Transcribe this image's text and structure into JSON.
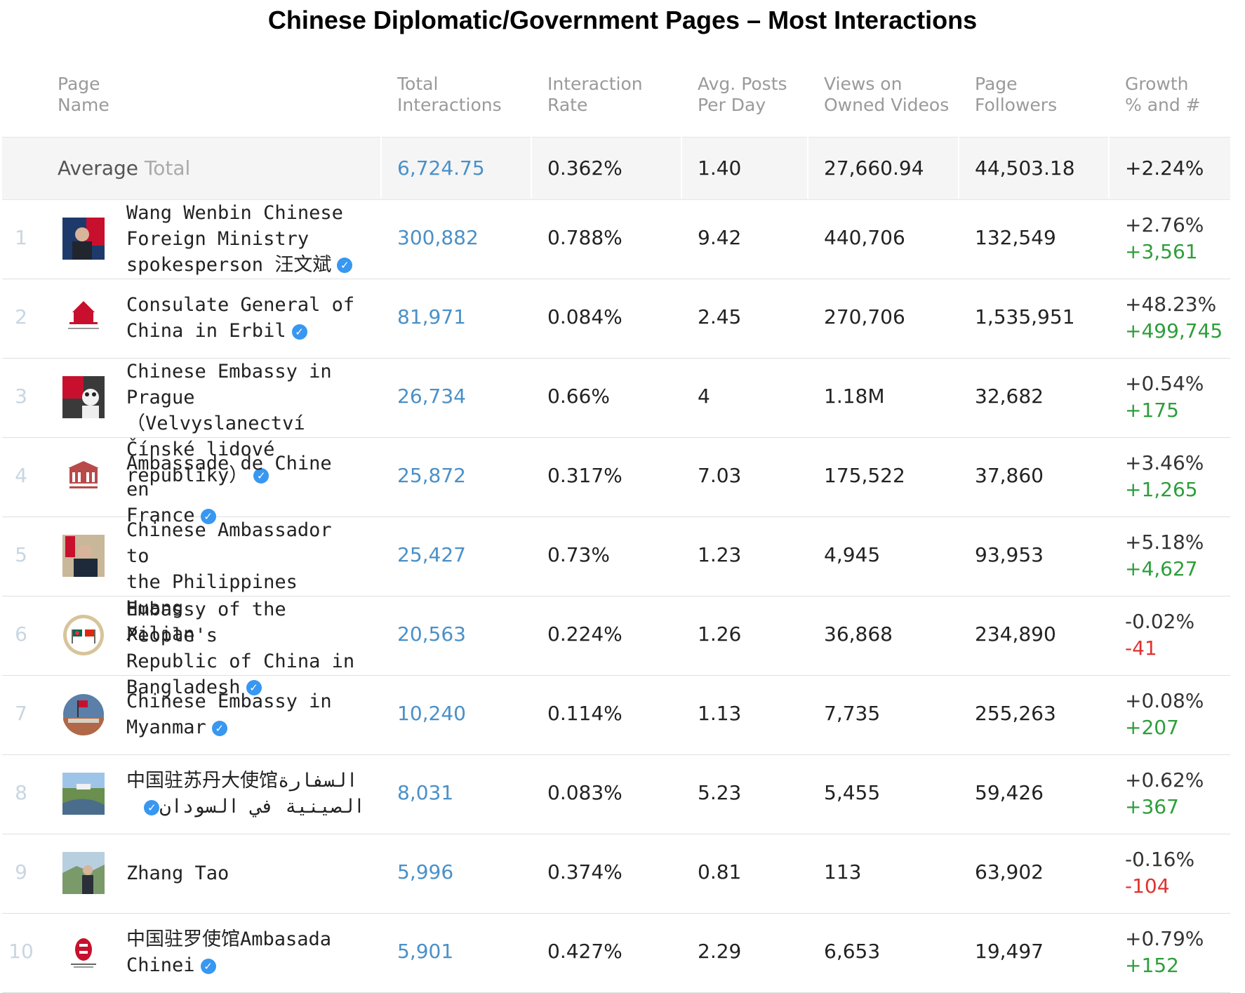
{
  "title": "Chinese Diplomatic/Government Pages – Most Interactions",
  "headers": {
    "page_name": [
      "Page",
      "Name"
    ],
    "total_interactions": [
      "Total",
      "Interactions"
    ],
    "interaction_rate": [
      "Interaction",
      "Rate"
    ],
    "avg_posts": [
      "Avg. Posts",
      "Per Day"
    ],
    "views": [
      "Views on",
      "Owned Videos"
    ],
    "followers": [
      "Page",
      "Followers"
    ],
    "growth": [
      "Growth",
      "% and #"
    ]
  },
  "average": {
    "label": "Average",
    "label2": "Total",
    "total_interactions": "6,724.75",
    "interaction_rate": "0.362%",
    "avg_posts": "1.40",
    "views": "27,660.94",
    "followers": "44,503.18",
    "growth": "+2.24%"
  },
  "rows": [
    {
      "rank": "1",
      "name_lines": [
        "Wang Wenbin Chinese",
        "Foreign Ministry",
        "spokesperson 汪文斌"
      ],
      "verified": true,
      "total": "300,882",
      "rate": "0.788%",
      "posts": "9.42",
      "views": "440,706",
      "followers": "132,549",
      "growth_pct": "+2.76%",
      "growth_num": "+3,561",
      "growth_sign": "pos"
    },
    {
      "rank": "2",
      "name_lines": [
        "Consulate General of",
        "China in Erbil"
      ],
      "verified": true,
      "total": "81,971",
      "rate": "0.084%",
      "posts": "2.45",
      "views": "270,706",
      "followers": "1,535,951",
      "growth_pct": "+48.23%",
      "growth_num": "+499,745",
      "growth_sign": "pos"
    },
    {
      "rank": "3",
      "name_lines": [
        "Chinese Embassy in",
        "Prague （Velvyslanectví",
        "Čínské lidové republiky）"
      ],
      "verified": true,
      "total": "26,734",
      "rate": "0.66%",
      "posts": "4",
      "views": "1.18M",
      "followers": "32,682",
      "growth_pct": "+0.54%",
      "growth_num": "+175",
      "growth_sign": "pos"
    },
    {
      "rank": "4",
      "name_lines": [
        "Ambassade de Chine en",
        "France"
      ],
      "verified": true,
      "total": "25,872",
      "rate": "0.317%",
      "posts": "7.03",
      "views": "175,522",
      "followers": "37,860",
      "growth_pct": "+3.46%",
      "growth_num": "+1,265",
      "growth_sign": "pos"
    },
    {
      "rank": "5",
      "name_lines": [
        "Chinese Ambassador to",
        "the Philippines Huang",
        "Xilian"
      ],
      "verified": false,
      "total": "25,427",
      "rate": "0.73%",
      "posts": "1.23",
      "views": "4,945",
      "followers": "93,953",
      "growth_pct": "+5.18%",
      "growth_num": "+4,627",
      "growth_sign": "pos"
    },
    {
      "rank": "6",
      "name_lines": [
        "Embassy of the People's",
        "Republic of China in",
        "Bangladesh"
      ],
      "verified": true,
      "total": "20,563",
      "rate": "0.224%",
      "posts": "1.26",
      "views": "36,868",
      "followers": "234,890",
      "growth_pct": "-0.02%",
      "growth_num": "-41",
      "growth_sign": "neg"
    },
    {
      "rank": "7",
      "name_lines": [
        "Chinese Embassy in",
        "Myanmar"
      ],
      "verified": true,
      "total": "10,240",
      "rate": "0.114%",
      "posts": "1.13",
      "views": "7,735",
      "followers": "255,263",
      "growth_pct": "+0.08%",
      "growth_num": "+207",
      "growth_sign": "pos"
    },
    {
      "rank": "8",
      "name_lines": [
        "中国驻苏丹大使馆السفارة",
        "الصينية في السودان"
      ],
      "verified": true,
      "total": "8,031",
      "rate": "0.083%",
      "posts": "5.23",
      "views": "5,455",
      "followers": "59,426",
      "growth_pct": "+0.62%",
      "growth_num": "+367",
      "growth_sign": "pos"
    },
    {
      "rank": "9",
      "name_lines": [
        "Zhang Tao"
      ],
      "verified": false,
      "total": "5,996",
      "rate": "0.374%",
      "posts": "0.81",
      "views": "113",
      "followers": "63,902",
      "growth_pct": "-0.16%",
      "growth_num": "-104",
      "growth_sign": "neg"
    },
    {
      "rank": "10",
      "name_lines": [
        "中国驻罗使馆Ambasada",
        "Chinei"
      ],
      "verified": true,
      "total": "5,901",
      "rate": "0.427%",
      "posts": "2.29",
      "views": "6,653",
      "followers": "19,497",
      "growth_pct": "+0.79%",
      "growth_num": "+152",
      "growth_sign": "pos"
    }
  ],
  "colors": {
    "link": "#4a90c8",
    "positive": "#2d9e3a",
    "negative": "#e0322f",
    "verified": "#3897f0"
  }
}
